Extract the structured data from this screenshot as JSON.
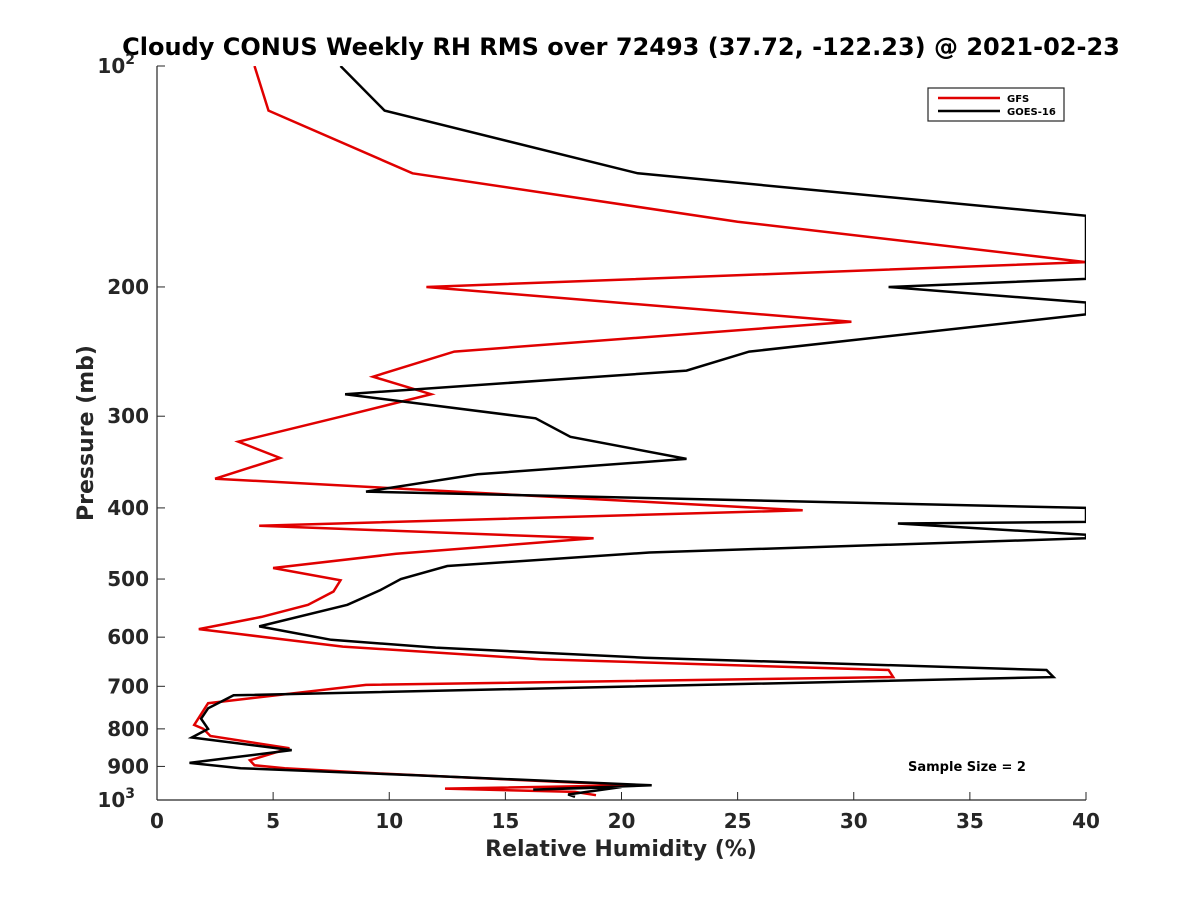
{
  "chart_data": {
    "type": "line",
    "title": "Cloudy CONUS Weekly RH RMS over 72493 (37.72, -122.23) @ 2021-02-23",
    "xlabel": "Relative Humidity (%)",
    "ylabel": "Pressure (mb)",
    "xlim": [
      0,
      40
    ],
    "ylim": [
      100,
      1000
    ],
    "y_scale": "log",
    "y_reversed": true,
    "x_ticks": [
      "0",
      "5",
      "10",
      "15",
      "20",
      "25",
      "30",
      "35",
      "40"
    ],
    "y_ticks": [
      {
        "value": 100,
        "label": "10",
        "sup": "2"
      },
      {
        "value": 200,
        "label": "200"
      },
      {
        "value": 300,
        "label": "300"
      },
      {
        "value": 400,
        "label": "400"
      },
      {
        "value": 500,
        "label": "500"
      },
      {
        "value": 600,
        "label": "600"
      },
      {
        "value": 700,
        "label": "700"
      },
      {
        "value": 800,
        "label": "800"
      },
      {
        "value": 900,
        "label": "900"
      },
      {
        "value": 1000,
        "label": "10",
        "sup": "3"
      }
    ],
    "grid": false,
    "legend_position": "top-right",
    "annotation": "Sample Size = 2",
    "series": [
      {
        "name": "GFS",
        "color": "#e00000",
        "points": [
          [
            4.2,
            100
          ],
          [
            4.8,
            115
          ],
          [
            11.0,
            140
          ],
          [
            25.0,
            163
          ],
          [
            40.0,
            185
          ],
          [
            11.6,
            200
          ],
          [
            29.9,
            223
          ],
          [
            12.8,
            245
          ],
          [
            9.3,
            265
          ],
          [
            11.8,
            280
          ],
          [
            8.0,
            300
          ],
          [
            3.5,
            325
          ],
          [
            5.3,
            342
          ],
          [
            2.5,
            365
          ],
          [
            27.8,
            403
          ],
          [
            4.4,
            423
          ],
          [
            18.8,
            440
          ],
          [
            10.3,
            462
          ],
          [
            5.0,
            483
          ],
          [
            7.9,
            502
          ],
          [
            7.6,
            520
          ],
          [
            6.5,
            542
          ],
          [
            4.5,
            563
          ],
          [
            1.8,
            585
          ],
          [
            8.0,
            618
          ],
          [
            16.5,
            643
          ],
          [
            31.5,
            665
          ],
          [
            31.7,
            680
          ],
          [
            9.0,
            697
          ],
          [
            2.2,
            738
          ],
          [
            1.6,
            790
          ],
          [
            2.0,
            800
          ],
          [
            2.3,
            818
          ],
          [
            5.7,
            850
          ],
          [
            4.0,
            883
          ],
          [
            4.2,
            897
          ],
          [
            5.5,
            905
          ],
          [
            9.5,
            920
          ],
          [
            20.5,
            955
          ],
          [
            12.4,
            965
          ],
          [
            18.0,
            975
          ],
          [
            18.9,
            985
          ]
        ]
      },
      {
        "name": "GOES-16",
        "color": "#000000",
        "points": [
          [
            7.9,
            100
          ],
          [
            9.8,
            115
          ],
          [
            20.7,
            140
          ],
          [
            40.0,
            160
          ],
          [
            40.0,
            195
          ],
          [
            31.5,
            200
          ],
          [
            40.0,
            210
          ],
          [
            40.0,
            218
          ],
          [
            25.5,
            245
          ],
          [
            22.8,
            260
          ],
          [
            8.1,
            280
          ],
          [
            16.3,
            302
          ],
          [
            17.8,
            320
          ],
          [
            22.8,
            343
          ],
          [
            13.8,
            360
          ],
          [
            9.0,
            380
          ],
          [
            40.0,
            400
          ],
          [
            40.0,
            418
          ],
          [
            31.9,
            420
          ],
          [
            40.0,
            435
          ],
          [
            40.0,
            440
          ],
          [
            21.2,
            460
          ],
          [
            12.5,
            480
          ],
          [
            10.5,
            500
          ],
          [
            9.6,
            518
          ],
          [
            8.2,
            542
          ],
          [
            4.4,
            580
          ],
          [
            7.5,
            605
          ],
          [
            12.0,
            620
          ],
          [
            21.0,
            640
          ],
          [
            38.3,
            665
          ],
          [
            38.6,
            680
          ],
          [
            3.3,
            720
          ],
          [
            2.2,
            750
          ],
          [
            1.9,
            775
          ],
          [
            2.2,
            800
          ],
          [
            1.5,
            822
          ],
          [
            5.8,
            855
          ],
          [
            3.3,
            875
          ],
          [
            1.4,
            890
          ],
          [
            3.6,
            905
          ],
          [
            11.0,
            925
          ],
          [
            21.3,
            955
          ],
          [
            16.2,
            968
          ],
          [
            20.0,
            960
          ],
          [
            17.7,
            983
          ],
          [
            18.0,
            990
          ]
        ]
      }
    ]
  }
}
